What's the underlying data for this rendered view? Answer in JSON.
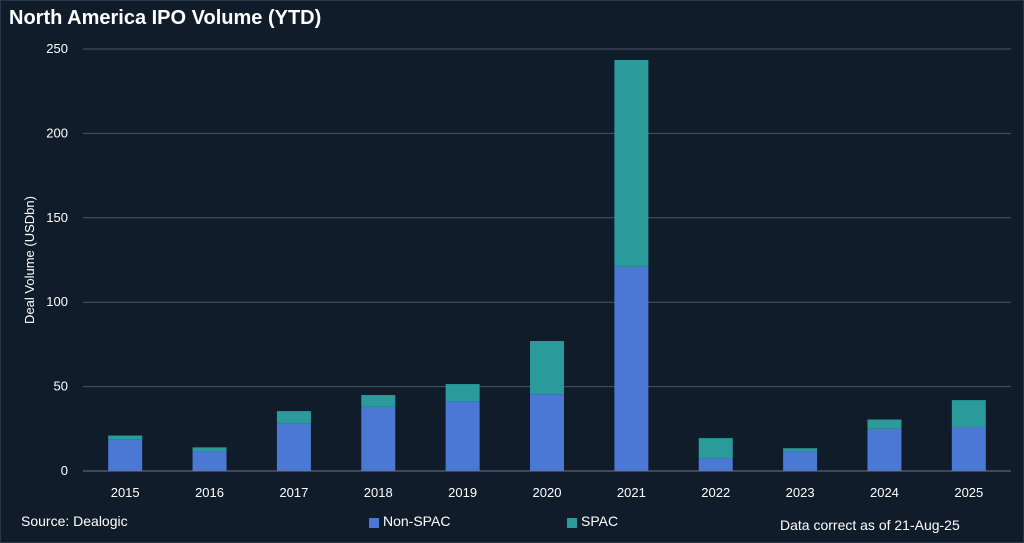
{
  "chart_data": {
    "type": "bar",
    "stacked": true,
    "title": "North America IPO Volume (YTD)",
    "ylabel": "Deal Volume (USDbn)",
    "xlabel": "",
    "ylim": [
      0,
      250
    ],
    "yticks": [
      0,
      50,
      100,
      150,
      200,
      250
    ],
    "grid": true,
    "legend_position": "bottom-center",
    "categories": [
      "2015",
      "2016",
      "2017",
      "2018",
      "2019",
      "2020",
      "2021",
      "2022",
      "2023",
      "2024",
      "2025"
    ],
    "series": [
      {
        "name": "Non-SPAC",
        "color": "#4a78d4",
        "values": [
          18.5,
          11.5,
          28,
          38,
          41,
          45.5,
          121,
          7.5,
          11.5,
          25,
          25.5
        ]
      },
      {
        "name": "SPAC",
        "color": "#2a9a9a",
        "values": [
          2.5,
          2.5,
          7.5,
          7,
          10.5,
          31.5,
          122.5,
          12,
          2,
          5.5,
          16.5
        ]
      }
    ]
  },
  "footer": {
    "source": "Source: Dealogic",
    "note": "Data correct as of 21-Aug-25"
  }
}
